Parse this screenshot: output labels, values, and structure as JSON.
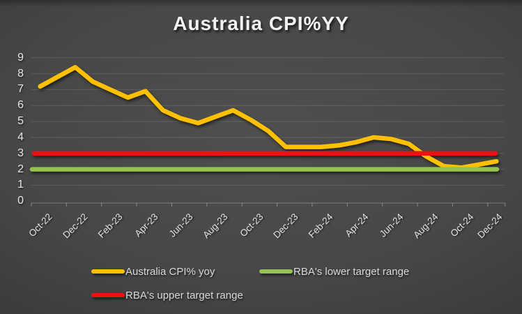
{
  "title": "Australia CPI%YY",
  "chart_data": {
    "type": "line",
    "categories": [
      "Oct-22",
      "Nov-22",
      "Dec-22",
      "Jan-23",
      "Feb-23",
      "Mar-23",
      "Apr-23",
      "May-23",
      "Jun-23",
      "Jul-23",
      "Aug-23",
      "Sep-23",
      "Oct-23",
      "Nov-23",
      "Dec-23",
      "Jan-24",
      "Feb-24",
      "Mar-24",
      "Apr-24",
      "May-24",
      "Jun-24",
      "Jul-24",
      "Aug-24",
      "Sep-24",
      "Oct-24",
      "Nov-24",
      "Dec-24"
    ],
    "x_tick_labels": [
      "Oct-22",
      "Dec-22",
      "Feb-23",
      "Apr-23",
      "Jun-23",
      "Aug-23",
      "Oct-23",
      "Dec-23",
      "Feb-24",
      "Apr-24",
      "Jun-24",
      "Aug-24",
      "Oct-24",
      "Dec-24"
    ],
    "series": [
      {
        "name": "Australia CPI% yoy",
        "color": "#FFC000",
        "values": [
          7.2,
          7.8,
          8.4,
          7.5,
          7.0,
          6.5,
          6.9,
          5.7,
          5.2,
          4.9,
          5.3,
          5.7,
          5.1,
          4.4,
          3.4,
          3.4,
          3.4,
          3.5,
          3.7,
          4.0,
          3.9,
          3.6,
          2.8,
          2.2,
          2.1,
          2.3,
          2.5
        ]
      },
      {
        "name": "RBA's lower target range",
        "color": "#92C353",
        "constant_value": 2
      },
      {
        "name": "RBA's upper target range",
        "color": "#EE1111",
        "constant_value": 3
      }
    ],
    "ylabel": "",
    "xlabel": "",
    "ylim": [
      0,
      9
    ],
    "y_ticks": [
      0,
      1,
      2,
      3,
      4,
      5,
      6,
      7,
      8,
      9
    ],
    "grid": true,
    "legend_position": "bottom"
  }
}
